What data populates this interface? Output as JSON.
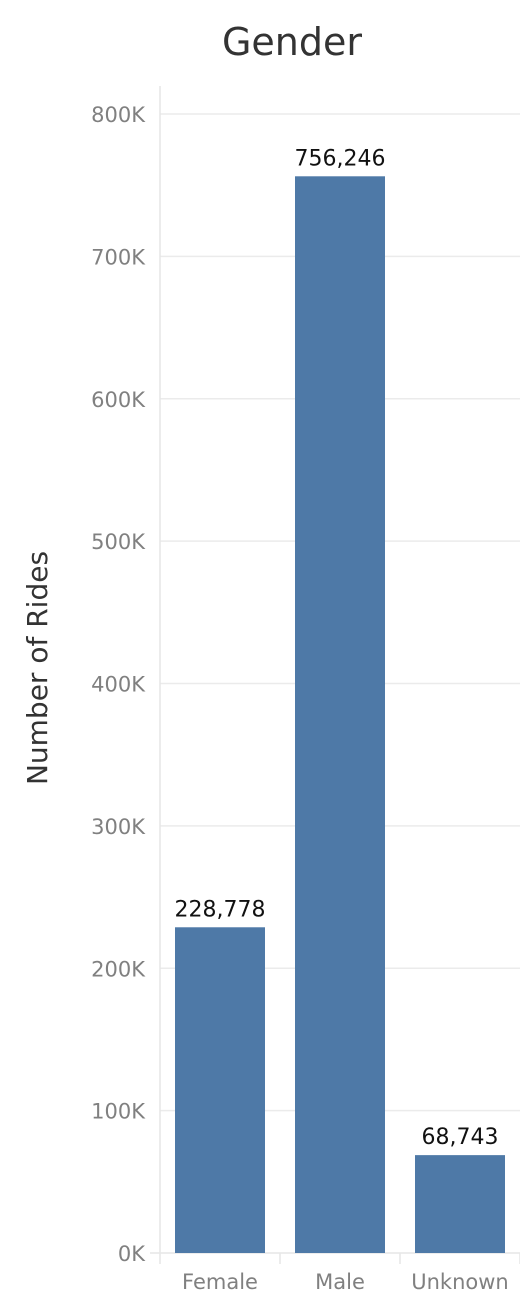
{
  "chart_data": {
    "type": "bar",
    "title": "Gender",
    "xlabel": "",
    "ylabel": "Number of Rides",
    "categories": [
      "Female",
      "Male",
      "Unknown"
    ],
    "values": [
      228778,
      756246,
      68743
    ],
    "data_labels": [
      "228,778",
      "756,246",
      "68,743"
    ],
    "ylim": [
      0,
      800000
    ],
    "y_ticks": [
      0,
      100000,
      200000,
      300000,
      400000,
      500000,
      600000,
      700000,
      800000
    ],
    "y_tick_labels": [
      "0K",
      "100K",
      "200K",
      "300K",
      "400K",
      "500K",
      "600K",
      "700K",
      "800K"
    ],
    "grid": true,
    "legend": "none",
    "bar_color": "#4e79a7"
  }
}
